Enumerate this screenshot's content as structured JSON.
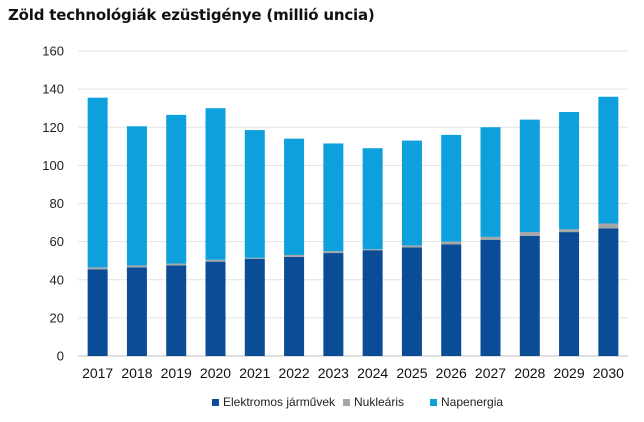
{
  "chart_data": {
    "type": "bar",
    "stacked": true,
    "title": "Zöld technológiák ezüstigénye (millió uncia)",
    "xlabel": "",
    "ylabel": "",
    "ylim": [
      0,
      160
    ],
    "yticks": [
      0,
      20,
      40,
      60,
      80,
      100,
      120,
      140,
      160
    ],
    "grid": true,
    "legend_position": "bottom",
    "categories": [
      "2017",
      "2018",
      "2019",
      "2020",
      "2021",
      "2022",
      "2023",
      "2024",
      "2025",
      "2026",
      "2027",
      "2028",
      "2029",
      "2030"
    ],
    "series": [
      {
        "name": "Elektromos járművek",
        "color": "#0a4c95",
        "values": [
          45.5,
          46.5,
          47.5,
          49.5,
          51,
          52,
          54,
          55.5,
          57,
          58.5,
          61,
          63,
          65,
          67
        ]
      },
      {
        "name": "Nukleáris",
        "color": "#a6a6a6",
        "values": [
          1,
          1,
          1,
          1,
          0.5,
          1,
          1,
          0.5,
          1,
          1.5,
          1.5,
          2,
          1.5,
          2.5
        ]
      },
      {
        "name": "Napenergia",
        "color": "#0ea0dc",
        "values": [
          89,
          73,
          78,
          79.5,
          67,
          61,
          56.5,
          53,
          55,
          56,
          57.5,
          59,
          61.5,
          66.5
        ]
      }
    ]
  }
}
